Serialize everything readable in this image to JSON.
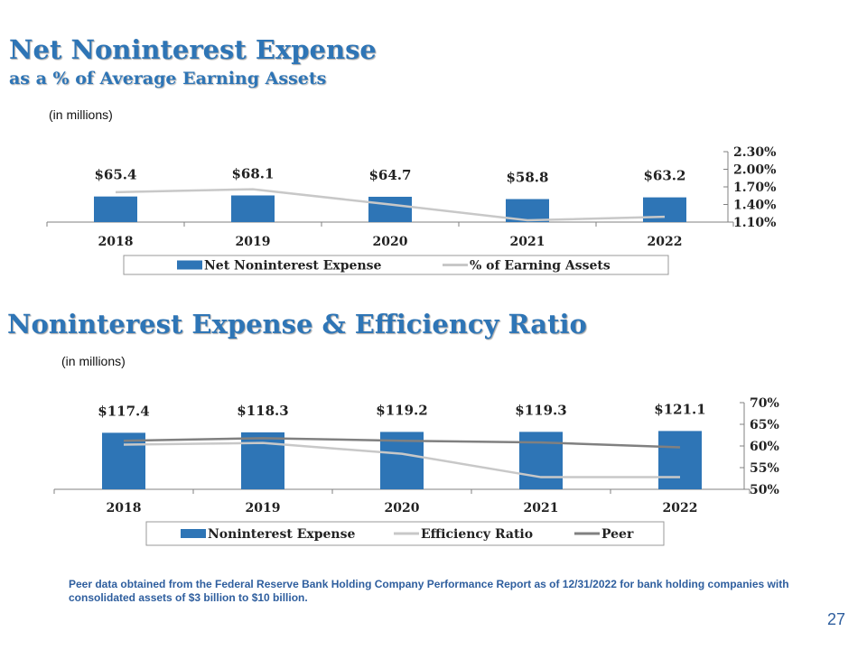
{
  "slide": {
    "title": "Net Noninterest Expense",
    "subtitle": "as a % of Average Earning Assets",
    "units1": "(in millions)",
    "title2": "Noninterest Expense & Efficiency Ratio",
    "units2": "(in millions)",
    "footnote": "Peer data obtained from the Federal Reserve Bank Holding Company Performance Report as of 12/31/2022 for bank holding companies with consolidated assets of $3 billion to $10 billion.",
    "page_number": "27"
  },
  "colors": {
    "bar": "#2E75B6",
    "ratio_line": "#C8C8C8",
    "peer_line": "#808080",
    "title": "#2E75B6"
  },
  "chart_data": [
    {
      "type": "bar",
      "categories": [
        "2018",
        "2019",
        "2020",
        "2021",
        "2022"
      ],
      "series": [
        {
          "name": "Net Noninterest Expense",
          "axis": "left",
          "kind": "bar",
          "values": [
            65.4,
            68.1,
            64.7,
            58.8,
            63.2
          ],
          "labels": [
            "$65.4",
            "$68.1",
            "$64.7",
            "$58.8",
            "$63.2"
          ]
        },
        {
          "name": "% of Earning Assets",
          "axis": "right",
          "kind": "line",
          "values": [
            1.61,
            1.66,
            1.4,
            1.13,
            1.19
          ]
        }
      ],
      "left_ylim": [
        0,
        180
      ],
      "right_ylim": [
        1.1,
        2.3
      ],
      "right_ticks": [
        "1.10%",
        "1.40%",
        "1.70%",
        "2.00%",
        "2.30%"
      ],
      "legend": "bottom"
    },
    {
      "type": "bar",
      "categories": [
        "2018",
        "2019",
        "2020",
        "2021",
        "2022"
      ],
      "series": [
        {
          "name": "Noninterest Expense",
          "axis": "left",
          "kind": "bar",
          "values": [
            117.4,
            118.3,
            119.2,
            119.3,
            121.1
          ],
          "labels": [
            "$117.4",
            "$118.3",
            "$119.2",
            "$119.3",
            "$121.1"
          ]
        },
        {
          "name": "Efficiency Ratio",
          "axis": "right",
          "kind": "line",
          "values": [
            60.3,
            60.7,
            58.2,
            52.8,
            52.8
          ]
        },
        {
          "name": "Peer",
          "axis": "right",
          "kind": "line",
          "values": [
            61.2,
            61.8,
            61.2,
            60.8,
            59.7
          ]
        }
      ],
      "left_ylim": [
        0,
        180
      ],
      "right_ylim": [
        50,
        70
      ],
      "right_ticks": [
        "50%",
        "55%",
        "60%",
        "65%",
        "70%"
      ],
      "legend": "bottom"
    }
  ]
}
